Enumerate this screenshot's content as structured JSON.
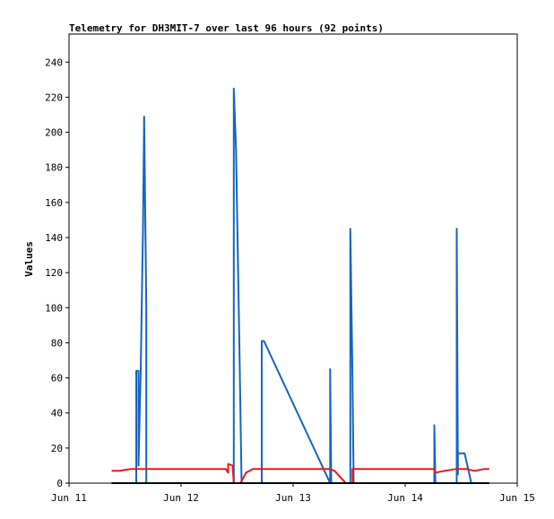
{
  "chart_data": {
    "type": "line",
    "title": "Telemetry for DH3MIT-7 over last 96 hours (92 points)",
    "ylabel": "Values",
    "xlabel": "",
    "x_ticks": [
      "Jun 11",
      "Jun 12",
      "Jun 13",
      "Jun 14",
      "Jun 15"
    ],
    "x_range_days": [
      11,
      15
    ],
    "ylim": [
      0,
      256
    ],
    "y_ticks": [
      0,
      20,
      40,
      60,
      80,
      100,
      120,
      140,
      160,
      180,
      200,
      220,
      240
    ],
    "grid": false,
    "colors": {
      "series_1": "#1565c0",
      "series_2": "#e8181c",
      "series_3": "#000000"
    },
    "series": [
      {
        "color_key": "series_1",
        "points": [
          [
            11.6,
            0
          ],
          [
            11.6,
            64
          ],
          [
            11.62,
            64
          ],
          [
            11.62,
            10
          ],
          [
            11.64,
            65
          ],
          [
            11.66,
            145
          ],
          [
            11.67,
            209
          ],
          [
            11.69,
            100
          ],
          [
            11.69,
            0
          ],
          [
            12.47,
            0
          ],
          [
            12.47,
            225
          ],
          [
            12.49,
            190
          ],
          [
            12.52,
            80
          ],
          [
            12.54,
            0
          ],
          [
            12.54,
            0
          ],
          [
            12.72,
            0
          ],
          [
            12.72,
            81
          ],
          [
            12.74,
            81
          ],
          [
            13.33,
            0
          ],
          [
            13.33,
            65
          ],
          [
            13.34,
            0
          ],
          [
            13.51,
            0
          ],
          [
            13.51,
            145
          ],
          [
            13.53,
            60
          ],
          [
            13.54,
            0
          ],
          [
            14.26,
            0
          ],
          [
            14.26,
            33
          ],
          [
            14.27,
            0
          ],
          [
            14.46,
            0
          ],
          [
            14.46,
            145
          ],
          [
            14.47,
            5
          ],
          [
            14.47,
            17
          ],
          [
            14.53,
            17
          ],
          [
            14.59,
            0
          ]
        ]
      },
      {
        "color_key": "series_2",
        "points": [
          [
            11.38,
            7
          ],
          [
            11.45,
            7
          ],
          [
            11.55,
            8
          ],
          [
            11.65,
            8
          ],
          [
            12.0,
            8
          ],
          [
            12.4,
            8
          ],
          [
            12.42,
            6
          ],
          [
            12.42,
            11
          ],
          [
            12.46,
            10
          ],
          [
            12.47,
            0
          ],
          [
            12.53,
            0
          ],
          [
            12.58,
            6
          ],
          [
            12.64,
            8
          ],
          [
            13.0,
            8
          ],
          [
            13.33,
            8
          ],
          [
            13.37,
            7
          ],
          [
            13.47,
            0
          ],
          [
            13.53,
            0
          ],
          [
            13.53,
            8
          ],
          [
            14.0,
            8
          ],
          [
            14.26,
            8
          ],
          [
            14.27,
            6
          ],
          [
            14.35,
            7
          ],
          [
            14.45,
            8
          ],
          [
            14.55,
            8
          ],
          [
            14.62,
            7
          ],
          [
            14.7,
            8
          ],
          [
            14.75,
            8
          ]
        ]
      },
      {
        "color_key": "series_3",
        "points": [
          [
            11.38,
            0
          ],
          [
            14.75,
            0
          ]
        ]
      }
    ]
  }
}
